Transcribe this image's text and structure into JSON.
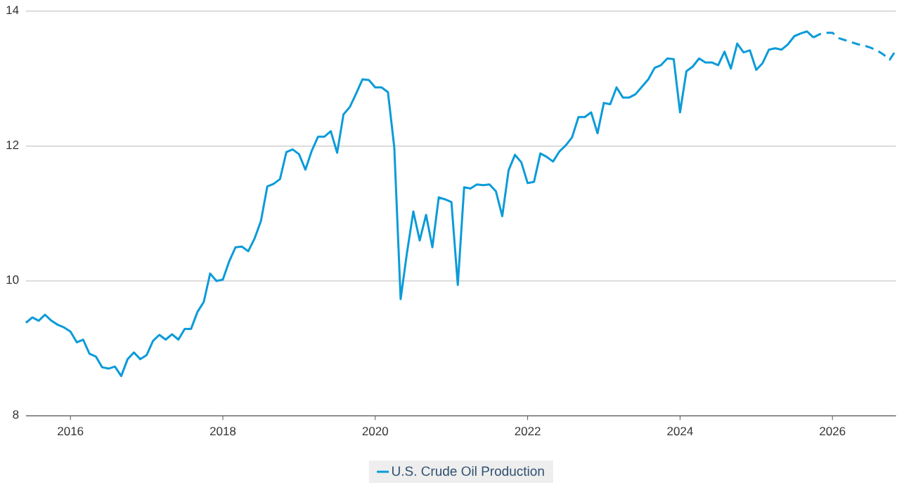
{
  "chart_data": {
    "type": "line",
    "marker": "none",
    "grid": "y",
    "legend": "bottom",
    "xlim": [
      "2015-06",
      "2026-11"
    ],
    "xticks": [
      "2016",
      "2018",
      "2020",
      "2022",
      "2024",
      "2026"
    ],
    "ylim": [
      8,
      14
    ],
    "yticks": [
      8,
      10,
      12,
      14
    ],
    "series": [
      {
        "name": "U.S. Crude Oil Production",
        "color": "#0a9bd9",
        "line_style": "solid",
        "x": [
          "2015-06",
          "2015-07",
          "2015-08",
          "2015-09",
          "2015-10",
          "2015-11",
          "2015-12",
          "2016-01",
          "2016-02",
          "2016-03",
          "2016-04",
          "2016-05",
          "2016-06",
          "2016-07",
          "2016-08",
          "2016-09",
          "2016-10",
          "2016-11",
          "2016-12",
          "2017-01",
          "2017-02",
          "2017-03",
          "2017-04",
          "2017-05",
          "2017-06",
          "2017-07",
          "2017-08",
          "2017-09",
          "2017-10",
          "2017-11",
          "2017-12",
          "2018-01",
          "2018-02",
          "2018-03",
          "2018-04",
          "2018-05",
          "2018-06",
          "2018-07",
          "2018-08",
          "2018-09",
          "2018-10",
          "2018-11",
          "2018-12",
          "2019-01",
          "2019-02",
          "2019-03",
          "2019-04",
          "2019-05",
          "2019-06",
          "2019-07",
          "2019-08",
          "2019-09",
          "2019-10",
          "2019-11",
          "2019-12",
          "2020-01",
          "2020-02",
          "2020-03",
          "2020-04",
          "2020-05",
          "2020-06",
          "2020-07",
          "2020-08",
          "2020-09",
          "2020-10",
          "2020-11",
          "2020-12",
          "2021-01",
          "2021-02",
          "2021-03",
          "2021-04",
          "2021-05",
          "2021-06",
          "2021-07",
          "2021-08",
          "2021-09",
          "2021-10",
          "2021-11",
          "2021-12",
          "2022-01",
          "2022-02",
          "2022-03",
          "2022-04",
          "2022-05",
          "2022-06",
          "2022-07",
          "2022-08",
          "2022-09",
          "2022-10",
          "2022-11",
          "2022-12",
          "2023-01",
          "2023-02",
          "2023-03",
          "2023-04",
          "2023-05",
          "2023-06",
          "2023-07",
          "2023-08",
          "2023-09",
          "2023-10",
          "2023-11",
          "2023-12",
          "2024-01",
          "2024-02",
          "2024-03",
          "2024-04",
          "2024-05",
          "2024-06",
          "2024-07",
          "2024-08",
          "2024-09",
          "2024-10",
          "2024-11",
          "2024-12",
          "2025-01",
          "2025-02",
          "2025-03",
          "2025-04",
          "2025-05",
          "2025-06",
          "2025-07",
          "2025-08",
          "2025-09",
          "2025-10"
        ],
        "values": [
          9.38,
          9.46,
          9.41,
          9.5,
          9.41,
          9.35,
          9.31,
          9.25,
          9.09,
          9.13,
          8.92,
          8.88,
          8.72,
          8.7,
          8.73,
          8.59,
          8.84,
          8.94,
          8.84,
          8.9,
          9.11,
          9.2,
          9.13,
          9.21,
          9.13,
          9.29,
          9.29,
          9.54,
          9.69,
          10.11,
          10.0,
          10.02,
          10.29,
          10.5,
          10.51,
          10.44,
          10.63,
          10.89,
          11.4,
          11.44,
          11.51,
          11.91,
          11.95,
          11.88,
          11.65,
          11.93,
          12.14,
          12.14,
          12.22,
          11.9,
          12.47,
          12.58,
          12.78,
          12.99,
          12.98,
          12.87,
          12.87,
          12.8,
          11.98,
          9.73,
          10.42,
          11.03,
          10.6,
          10.98,
          10.5,
          11.24,
          11.21,
          11.17,
          9.94,
          11.39,
          11.37,
          11.43,
          11.42,
          11.43,
          11.33,
          10.96,
          11.64,
          11.87,
          11.76,
          11.45,
          11.47,
          11.89,
          11.84,
          11.77,
          11.92,
          12.01,
          12.13,
          12.43,
          12.43,
          12.5,
          12.19,
          12.64,
          12.62,
          12.87,
          12.72,
          12.72,
          12.77,
          12.88,
          12.99,
          13.16,
          13.2,
          13.3,
          13.29,
          12.5,
          13.11,
          13.18,
          13.3,
          13.24,
          13.24,
          13.2,
          13.4,
          13.15,
          13.52,
          13.39,
          13.42,
          13.13,
          13.23,
          13.43,
          13.45,
          13.43,
          13.51,
          13.63,
          13.67,
          13.7,
          13.61
        ]
      },
      {
        "color": "#0a9bd9",
        "line_style": "dashed",
        "x": [
          "2025-10",
          "2025-11",
          "2025-12",
          "2026-01",
          "2026-02",
          "2026-03",
          "2026-04",
          "2026-05",
          "2026-06",
          "2026-07",
          "2026-08",
          "2026-09",
          "2026-10",
          "2026-11"
        ],
        "values": [
          13.61,
          13.66,
          13.68,
          13.68,
          13.6,
          13.57,
          13.54,
          13.51,
          13.49,
          13.46,
          13.42,
          13.36,
          13.28,
          13.42
        ]
      }
    ]
  }
}
